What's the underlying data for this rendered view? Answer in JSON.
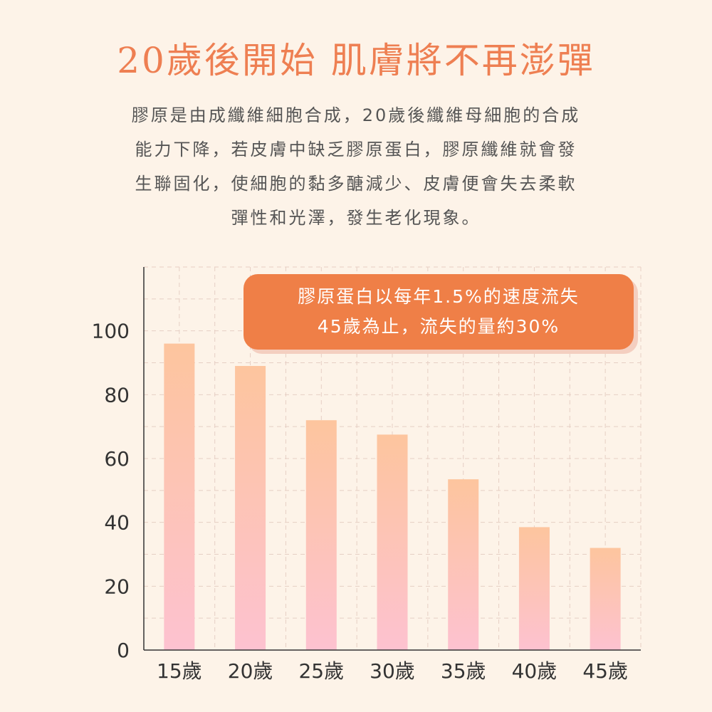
{
  "header": {
    "title": "20歲後開始 肌膚將不再澎彈",
    "description_lines": [
      "膠原是由成纖維細胞合成，20歲後纖維母細胞的合成",
      "能力下降，若皮膚中缺乏膠原蛋白，膠原纖維就會發",
      "生聯固化，使細胞的黏多醣減少、皮膚便會失去柔軟",
      "彈性和光澤，發生老化現象。"
    ]
  },
  "callout": {
    "lines": [
      "膠原蛋白以每年1.5%的速度流失",
      "45歲為止，流失的量約30%"
    ]
  },
  "colors": {
    "title": "#ee7f52",
    "callout_bg": "#ef7f47",
    "bar_top": "#fdc59e",
    "bar_bottom": "#fdc2d0",
    "axis": "#333333",
    "grid": "#e6cfc4"
  },
  "chart_data": {
    "type": "bar",
    "categories": [
      "15歲",
      "20歲",
      "25歲",
      "30歲",
      "35歲",
      "40歲",
      "45歲"
    ],
    "values": [
      96,
      89,
      72,
      67.5,
      53.5,
      38.5,
      32
    ],
    "yticks": [
      0,
      20,
      40,
      60,
      80,
      100
    ],
    "ylim": [
      0,
      120
    ],
    "grid": true,
    "title": "",
    "xlabel": "",
    "ylabel": ""
  }
}
